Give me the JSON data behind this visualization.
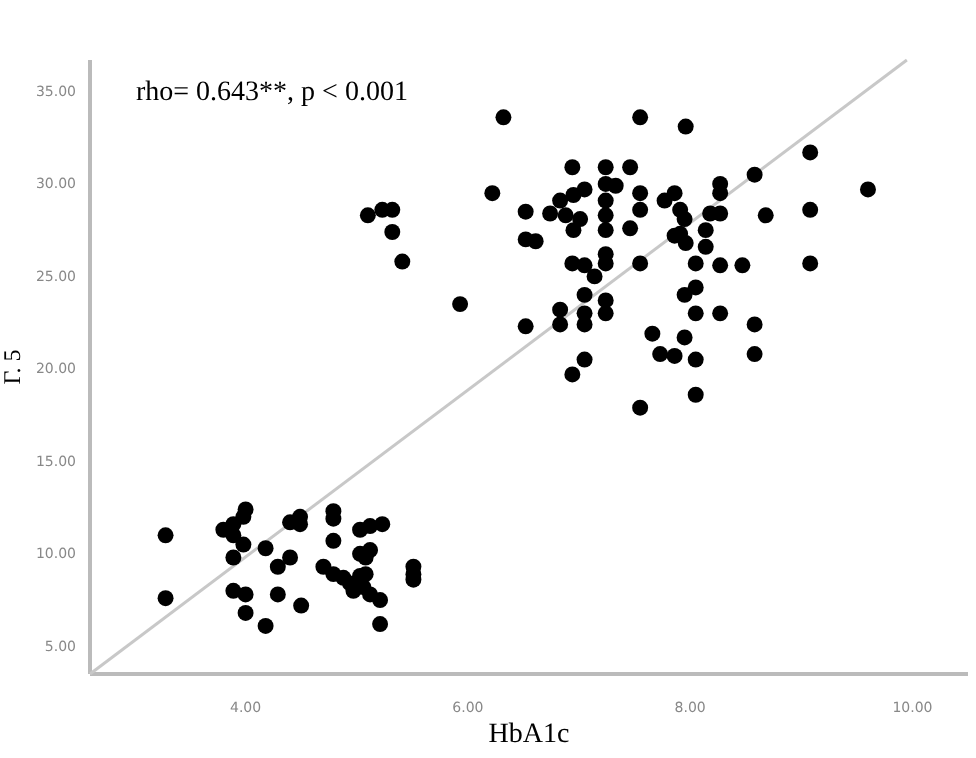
{
  "chart_data": {
    "type": "scatter",
    "xlabel": "HbA1c",
    "ylabel": "Γ. 5",
    "annotations": [
      "rho= 0.643**, p < 0.001"
    ],
    "xlim": [
      2.6,
      10.5
    ],
    "ylim": [
      3.5,
      36.7
    ],
    "xticks": [
      {
        "value": 4,
        "label": "4.00"
      },
      {
        "value": 6,
        "label": "6.00"
      },
      {
        "value": 8,
        "label": "8.00"
      },
      {
        "value": 10,
        "label": "10.00"
      }
    ],
    "yticks": [
      {
        "value": 5,
        "label": "5.00"
      },
      {
        "value": 10,
        "label": "10.00"
      },
      {
        "value": 15,
        "label": "15.00"
      },
      {
        "value": 20,
        "label": "20.00"
      },
      {
        "value": 25,
        "label": "25.00"
      },
      {
        "value": 30,
        "label": "30.00"
      },
      {
        "value": 35,
        "label": "35.00"
      }
    ],
    "grid": false,
    "series": [
      {
        "color": "#000000",
        "marker": "circle",
        "x": [
          5.1,
          5.23,
          5.32,
          5.32,
          5.41,
          5.93,
          6.22,
          6.32,
          7.55,
          7.96,
          9.08,
          9.6,
          6.94,
          7.24,
          7.46,
          8.58,
          8.27,
          8.27,
          9.08,
          8.68,
          6.52,
          6.74,
          6.83,
          6.95,
          7.05,
          7.24,
          7.33,
          7.55,
          7.55,
          7.77,
          7.86,
          7.91,
          7.24,
          7.24,
          6.88,
          7.01,
          6.95,
          7.24,
          7.46,
          7.95,
          8.18,
          8.27,
          8.14,
          7.91,
          7.96,
          7.86,
          8.14,
          6.52,
          6.61,
          6.94,
          7.05,
          7.24,
          7.24,
          7.55,
          7.14,
          8.05,
          8.27,
          8.47,
          9.08,
          7.05,
          7.95,
          8.05,
          6.83,
          6.83,
          7.05,
          7.05,
          7.24,
          7.24,
          6.52,
          8.05,
          8.27,
          8.58,
          7.66,
          7.95,
          7.73,
          7.86,
          8.05,
          8.58,
          7.05,
          6.94,
          8.05,
          7.55,
          3.28,
          3.28,
          3.8,
          3.89,
          3.89,
          3.98,
          4.0,
          3.98,
          3.89,
          4.18,
          4.4,
          4.4,
          4.49,
          4.49,
          4.79,
          4.79,
          4.79,
          5.03,
          5.12,
          5.23,
          3.89,
          4.0,
          4.0,
          4.18,
          4.29,
          4.29,
          4.5,
          4.7,
          4.79,
          4.88,
          4.94,
          5.03,
          5.08,
          5.08,
          5.06,
          5.12,
          4.97,
          5.21,
          5.21,
          5.51,
          5.51,
          5.51,
          5.03,
          5.12
        ],
        "values": [
          28.3,
          28.6,
          28.6,
          27.4,
          25.8,
          23.5,
          29.5,
          33.6,
          33.6,
          33.1,
          31.7,
          29.7,
          30.9,
          30.9,
          30.9,
          30.5,
          30.0,
          29.5,
          28.6,
          28.3,
          28.5,
          28.4,
          29.1,
          29.4,
          29.7,
          30.0,
          29.9,
          29.5,
          28.6,
          29.1,
          29.5,
          28.6,
          29.1,
          28.3,
          28.3,
          28.1,
          27.5,
          27.5,
          27.6,
          28.1,
          28.4,
          28.4,
          27.5,
          27.3,
          26.8,
          27.2,
          26.6,
          27.0,
          26.9,
          25.7,
          25.6,
          26.2,
          25.7,
          25.7,
          25.0,
          25.7,
          25.6,
          25.6,
          25.7,
          24.0,
          24.0,
          24.4,
          23.2,
          22.4,
          23.0,
          22.4,
          23.7,
          23.0,
          22.3,
          23.0,
          23.0,
          22.4,
          21.9,
          21.7,
          20.8,
          20.7,
          20.5,
          20.8,
          20.5,
          19.7,
          18.6,
          17.9,
          11.0,
          7.6,
          11.3,
          11.6,
          11.0,
          12.0,
          12.4,
          10.5,
          9.8,
          10.3,
          9.8,
          11.7,
          12.0,
          11.6,
          12.3,
          11.9,
          10.7,
          11.3,
          11.5,
          11.6,
          8.0,
          7.8,
          6.8,
          6.1,
          9.3,
          7.8,
          7.2,
          9.3,
          8.9,
          8.7,
          8.4,
          8.8,
          9.8,
          8.9,
          8.2,
          7.8,
          8.0,
          7.5,
          6.2,
          9.3,
          8.9,
          8.6,
          10.0,
          10.2
        ]
      },
      {
        "type": "line",
        "color": "#c8c8c8",
        "x": [
          2.6,
          9.95
        ],
        "values": [
          3.5,
          36.7
        ]
      }
    ]
  }
}
